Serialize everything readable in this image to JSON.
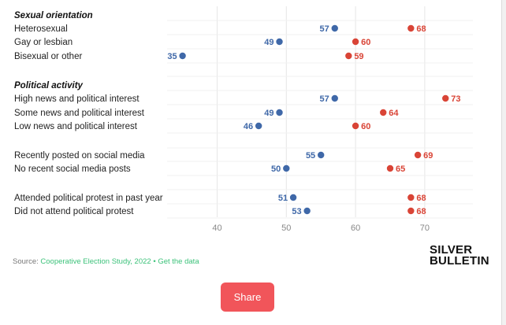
{
  "chart_data": {
    "type": "dumbbell",
    "xlim": [
      34,
      71
    ],
    "x_ticks": [
      40,
      50,
      60,
      70
    ],
    "grid": true,
    "colors": {
      "start": "#3f68a8",
      "end": "#d94436"
    },
    "sections": [
      {
        "title": "Sexual orientation",
        "rows": [
          {
            "label": "Heterosexual",
            "a": 57,
            "b": 68
          },
          {
            "label": "Gay or lesbian",
            "a": 49,
            "b": 60
          },
          {
            "label": "Bisexual or other",
            "a": 35,
            "b": 59
          }
        ]
      },
      {
        "title": "Political activity",
        "rows": [
          {
            "label": "High news and political interest",
            "a": 57,
            "b": 73
          },
          {
            "label": "Some news and political interest",
            "a": 49,
            "b": 64
          },
          {
            "label": "Low news and political interest",
            "a": 46,
            "b": 60
          }
        ]
      },
      {
        "title": "",
        "rows": [
          {
            "label": "Recently posted on social media",
            "a": 55,
            "b": 69
          },
          {
            "label": "No recent social media posts",
            "a": 50,
            "b": 65
          }
        ]
      },
      {
        "title": "",
        "rows": [
          {
            "label": "Attended political protest in past year",
            "a": 51,
            "b": 68
          },
          {
            "label": "Did not attend political protest",
            "a": 53,
            "b": 68
          }
        ]
      }
    ]
  },
  "footer": {
    "source_prefix": "Source: ",
    "source_name": "Cooperative Election Study, 2022",
    "separator": " • ",
    "data_link": "Get the data"
  },
  "brand": {
    "line1": "SILVER",
    "line2": "BULLETIN"
  },
  "share_label": "Share"
}
